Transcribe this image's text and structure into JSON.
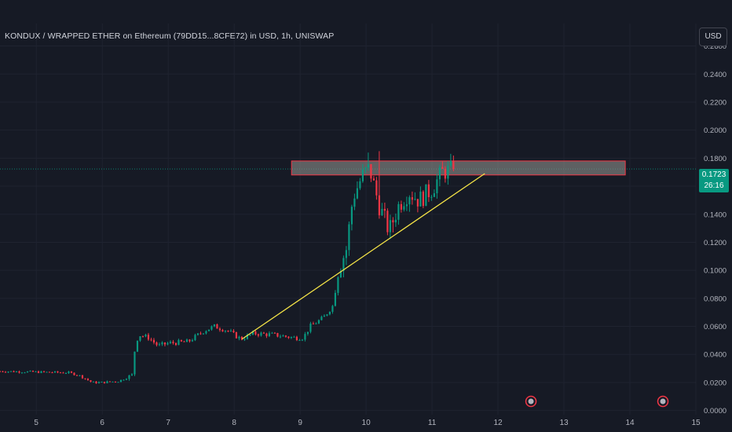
{
  "header": {
    "title": "KONDUX / WRAPPED ETHER on Ethereum (79DD15...8CFE72) in USD, 1h, UNISWAP",
    "currency_button": "USD"
  },
  "price_tag": {
    "price": "0.1723",
    "countdown": "26:16"
  },
  "colors": {
    "background": "#161a25",
    "up": "#089981",
    "down": "#f23645",
    "trendline": "#f5e447",
    "zone_fill": "#8a8d88",
    "zone_border": "#f23645",
    "axis_text": "#b2b5be"
  },
  "chart_data": {
    "type": "candlestick",
    "x_ticks": [
      "5",
      "6",
      "7",
      "8",
      "9",
      "10",
      "11",
      "12",
      "13",
      "14",
      "15"
    ],
    "y_ticks": [
      "0.0000",
      "0.0200",
      "0.0400",
      "0.0600",
      "0.0800",
      "0.1000",
      "0.1200",
      "0.1400",
      "0.1600",
      "0.1800",
      "0.2000",
      "0.2200",
      "0.2400",
      "0.2600"
    ],
    "xlim": [
      4.45,
      15.0
    ],
    "ylim": [
      -0.003,
      0.276
    ],
    "current_price": 0.1723,
    "anchors": [
      [
        4.45,
        0.028
      ],
      [
        5.5,
        0.027
      ],
      [
        5.65,
        0.025
      ],
      [
        5.85,
        0.02
      ],
      [
        6.0,
        0.02
      ],
      [
        6.25,
        0.021
      ],
      [
        6.45,
        0.025
      ],
      [
        6.5,
        0.046
      ],
      [
        6.55,
        0.054
      ],
      [
        6.7,
        0.052
      ],
      [
        6.85,
        0.046
      ],
      [
        7.0,
        0.048
      ],
      [
        7.3,
        0.049
      ],
      [
        7.55,
        0.057
      ],
      [
        7.7,
        0.06
      ],
      [
        7.9,
        0.057
      ],
      [
        8.1,
        0.051
      ],
      [
        8.3,
        0.055
      ],
      [
        8.6,
        0.054
      ],
      [
        8.9,
        0.052
      ],
      [
        9.05,
        0.052
      ],
      [
        9.15,
        0.06
      ],
      [
        9.35,
        0.066
      ],
      [
        9.5,
        0.075
      ],
      [
        9.55,
        0.097
      ],
      [
        9.7,
        0.115
      ],
      [
        9.8,
        0.152
      ],
      [
        9.95,
        0.168
      ],
      [
        10.05,
        0.173
      ],
      [
        10.2,
        0.146
      ],
      [
        10.35,
        0.128
      ],
      [
        10.5,
        0.147
      ],
      [
        10.65,
        0.156
      ],
      [
        10.8,
        0.15
      ],
      [
        11.0,
        0.158
      ],
      [
        11.15,
        0.17
      ],
      [
        11.35,
        0.1723
      ]
    ],
    "spikes": [
      [
        10.05,
        0.184
      ],
      [
        10.2,
        0.185
      ],
      [
        10.4,
        0.127
      ]
    ],
    "trendline": {
      "from": [
        8.12,
        0.051
      ],
      "to": [
        11.8,
        0.169
      ]
    },
    "resistance_zone": {
      "x_start": 8.87,
      "x_end": 13.93,
      "y_bottom": 0.168,
      "y_top": 0.178
    },
    "events": [
      {
        "x": 12.5,
        "type": "event-marker"
      },
      {
        "x": 14.5,
        "type": "event-marker"
      }
    ]
  }
}
